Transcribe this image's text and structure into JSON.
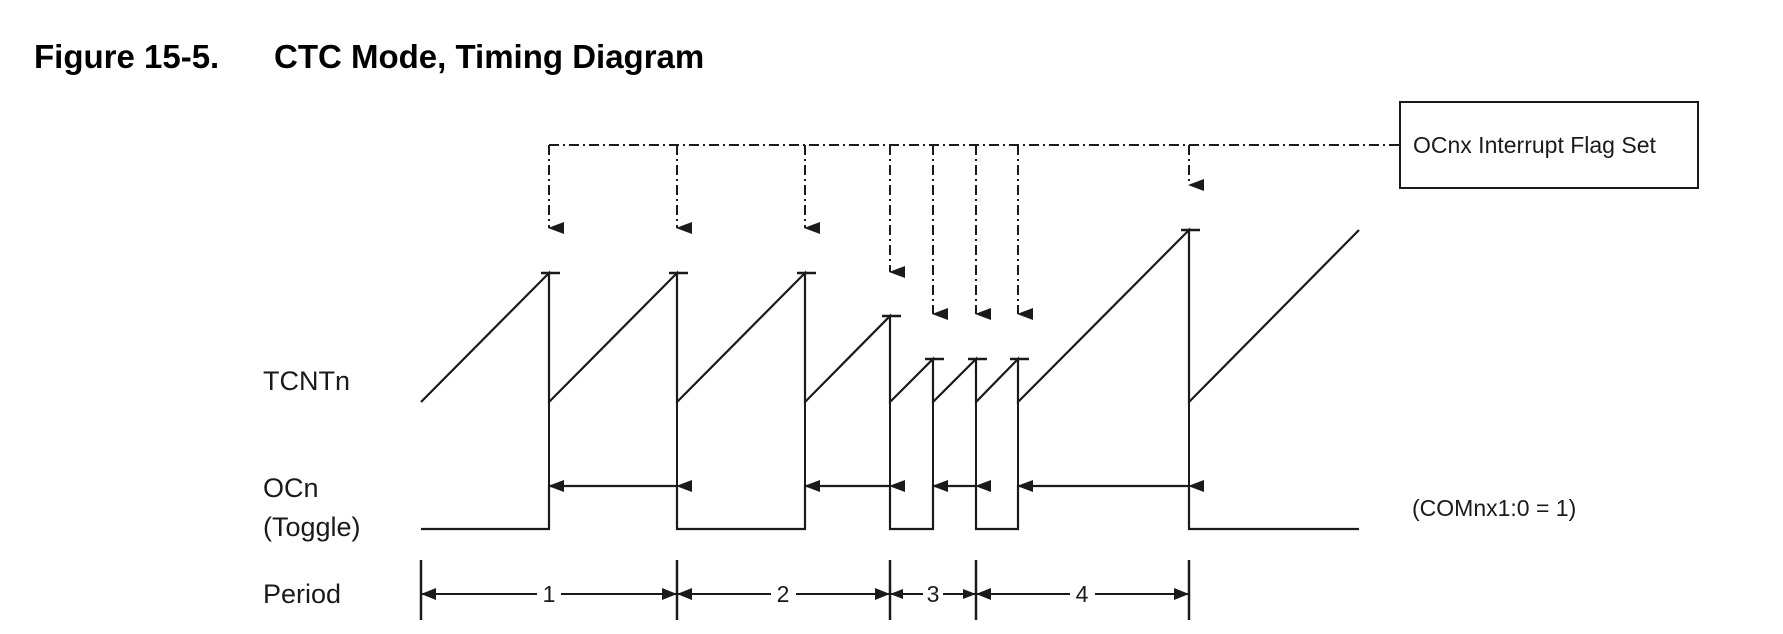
{
  "figure": {
    "number": "Figure 15-5.",
    "title": "CTC Mode, Timing Diagram"
  },
  "signals": {
    "tcnt_label": "TCNTn",
    "ocn_label_line1": "OCn",
    "ocn_label_line2": "(Toggle)",
    "period_label": "Period"
  },
  "interrupt_box": {
    "text": "OCnx Interrupt Flag Set"
  },
  "mode_note": "(COMnx1:0 = 1)",
  "periods": [
    "1",
    "2",
    "3",
    "4"
  ]
}
